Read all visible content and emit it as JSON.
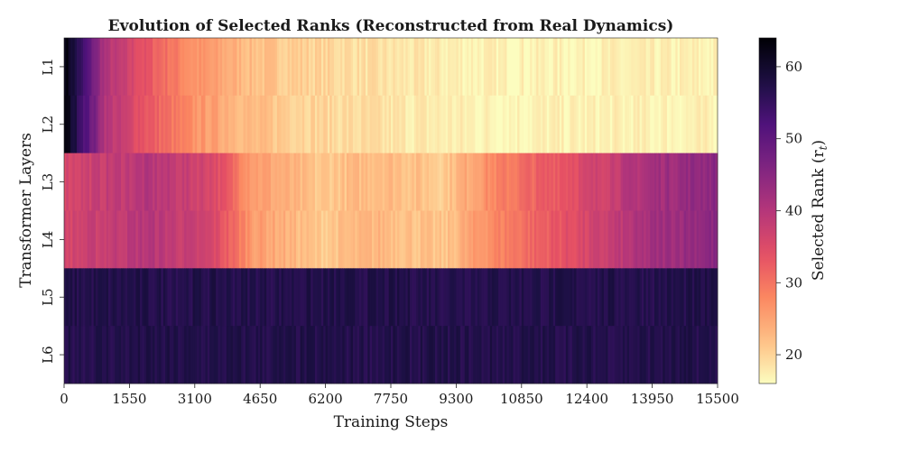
{
  "chart_data": {
    "type": "heatmap",
    "title": "Evolution of Selected Ranks (Reconstructed from Real Dynamics)",
    "xlabel": "Training Steps",
    "ylabel": "Transformer Layers",
    "x_range": [
      0,
      15500
    ],
    "x_ticks": [
      "0",
      "1550",
      "3100",
      "4650",
      "6200",
      "7750",
      "9300",
      "10850",
      "12400",
      "13950",
      "15500"
    ],
    "layers": [
      "L1",
      "L2",
      "L3",
      "L4",
      "L5",
      "L6"
    ],
    "groups": [
      {
        "layers": [
          "L1",
          "L2"
        ],
        "steps": [
          0,
          500,
          1000,
          2000,
          3000,
          4500,
          6000,
          8000,
          10000,
          12000,
          15500
        ],
        "ranks": [
          64,
          52,
          40,
          33,
          27,
          22,
          20,
          18,
          17,
          17,
          17
        ]
      },
      {
        "layers": [
          "L3",
          "L4"
        ],
        "steps": [
          0,
          2000,
          3500,
          4500,
          6000,
          7500,
          9000,
          10000,
          11000,
          12500,
          14000,
          15500
        ],
        "ranks": [
          36,
          40,
          36,
          26,
          21,
          23,
          21,
          27,
          31,
          36,
          42,
          45
        ]
      },
      {
        "layers": [
          "L5",
          "L6"
        ],
        "steps": [
          0,
          15500
        ],
        "ranks": [
          57,
          57
        ]
      }
    ],
    "colorbar": {
      "label": "Selected Rank (r",
      "label_subscript": "t",
      "label_close": ")",
      "range": [
        16,
        64
      ],
      "ticks": [
        "20",
        "30",
        "40",
        "50",
        "60"
      ],
      "colormap": "magma_r"
    }
  }
}
